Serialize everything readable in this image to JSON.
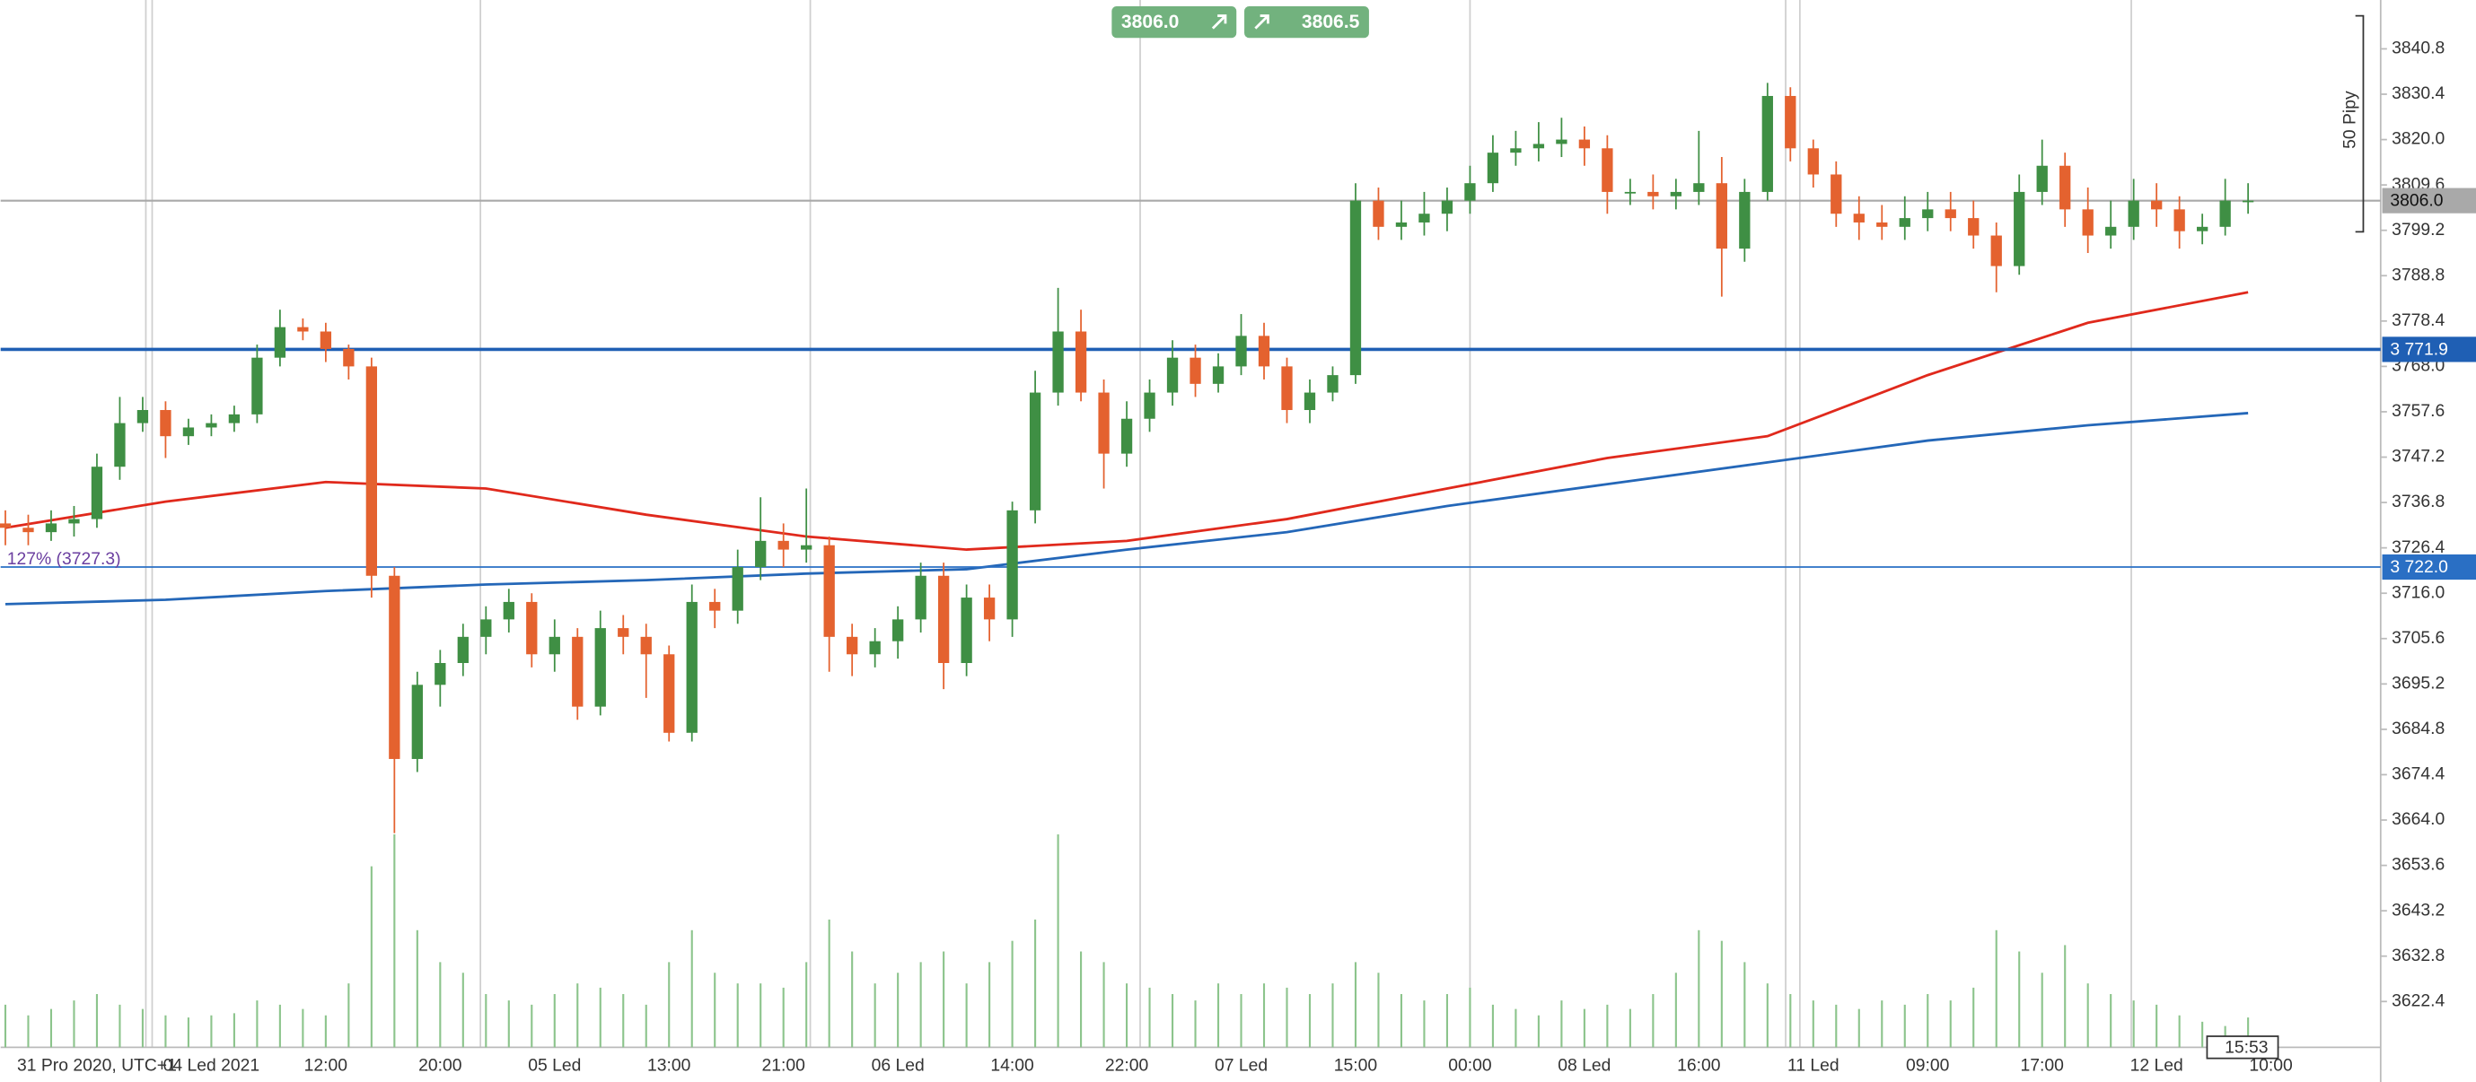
{
  "chart_data": {
    "type": "candlestick",
    "categories": [
      null,
      null,
      null,
      null,
      "31 Pro 2020, UTC+1",
      null,
      null,
      null,
      null,
      "04 Led 2021",
      null,
      null,
      null,
      null,
      "12:00",
      null,
      null,
      null,
      null,
      "20:00",
      null,
      null,
      null,
      null,
      "05 Led",
      null,
      null,
      null,
      null,
      "13:00",
      null,
      null,
      null,
      null,
      "21:00",
      null,
      null,
      null,
      null,
      "06 Led",
      null,
      null,
      null,
      null,
      "14:00",
      null,
      null,
      null,
      null,
      "22:00",
      null,
      null,
      null,
      null,
      "07 Led",
      null,
      null,
      null,
      null,
      "15:00",
      null,
      null,
      null,
      null,
      "00:00",
      null,
      null,
      null,
      null,
      "08 Led",
      null,
      null,
      null,
      null,
      "16:00",
      null,
      null,
      null,
      null,
      "11 Led",
      null,
      null,
      null,
      null,
      "09:00",
      null,
      null,
      null,
      null,
      "17:00",
      null,
      null,
      null,
      null,
      "12 Led",
      null,
      null,
      null,
      null,
      "10:00"
    ],
    "open": [
      3732,
      3731,
      3730,
      3732,
      3733,
      3745,
      3755,
      3758,
      3752,
      3754,
      3755,
      3757,
      3770,
      3777,
      3776,
      3772,
      3768,
      3720,
      3678,
      3695,
      3700,
      3706,
      3710,
      3714,
      3702,
      3706,
      3690,
      3708,
      3706,
      3702,
      3684,
      3714,
      3712,
      3722,
      3728,
      3726,
      3727,
      3706,
      3702,
      3705,
      3710,
      3720,
      3700,
      3715,
      3710,
      3735,
      3762,
      3776,
      3762,
      3748,
      3756,
      3762,
      3770,
      3764,
      3768,
      3775,
      3768,
      3758,
      3762,
      3766,
      3806,
      3800,
      3801,
      3803,
      3806,
      3810,
      3817,
      3818,
      3819,
      3820,
      3818,
      3808,
      3808,
      3807,
      3808,
      3810,
      3795,
      3808,
      3830,
      3818,
      3812,
      3803,
      3801,
      3800,
      3802,
      3804,
      3802,
      3798,
      3791,
      3808,
      3814,
      3804,
      3798,
      3800,
      3806,
      3804,
      3799,
      3800,
      3806,
      null
    ],
    "high": [
      3735,
      3734,
      3735,
      3736,
      3748,
      3761,
      3761,
      3760,
      3756,
      3757,
      3759,
      3773,
      3781,
      3779,
      3778,
      3773,
      3770,
      3722,
      3698,
      3703,
      3709,
      3713,
      3717,
      3716,
      3710,
      3708,
      3712,
      3711,
      3709,
      3704,
      3718,
      3717,
      3726,
      3738,
      3732,
      3740,
      3729,
      3709,
      3708,
      3713,
      3723,
      3723,
      3718,
      3718,
      3737,
      3767,
      3786,
      3781,
      3765,
      3760,
      3765,
      3774,
      3773,
      3771,
      3780,
      3778,
      3770,
      3765,
      3768,
      3810,
      3809,
      3806,
      3808,
      3809,
      3814,
      3821,
      3822,
      3824,
      3825,
      3823,
      3821,
      3811,
      3812,
      3811,
      3822,
      3816,
      3811,
      3833,
      3832,
      3820,
      3815,
      3807,
      3805,
      3807,
      3808,
      3808,
      3806,
      3801,
      3812,
      3820,
      3817,
      3809,
      3806,
      3811,
      3810,
      3807,
      3803,
      3811,
      3810,
      null
    ],
    "low": [
      3727,
      3727,
      3728,
      3729,
      3731,
      3742,
      3753,
      3747,
      3750,
      3752,
      3753,
      3755,
      3768,
      3774,
      3769,
      3765,
      3715,
      3661,
      3675,
      3690,
      3697,
      3702,
      3707,
      3699,
      3698,
      3687,
      3688,
      3702,
      3692,
      3682,
      3682,
      3708,
      3709,
      3719,
      3722,
      3723,
      3698,
      3697,
      3699,
      3701,
      3707,
      3694,
      3697,
      3705,
      3706,
      3732,
      3759,
      3760,
      3740,
      3745,
      3753,
      3759,
      3761,
      3762,
      3766,
      3765,
      3755,
      3755,
      3760,
      3764,
      3797,
      3797,
      3798,
      3799,
      3803,
      3808,
      3814,
      3815,
      3816,
      3814,
      3803,
      3805,
      3804,
      3804,
      3805,
      3784,
      3792,
      3806,
      3815,
      3809,
      3800,
      3797,
      3797,
      3797,
      3799,
      3799,
      3795,
      3785,
      3789,
      3805,
      3800,
      3794,
      3795,
      3797,
      3800,
      3795,
      3796,
      3798,
      3803,
      null
    ],
    "close": [
      3731,
      3730,
      3732,
      3733,
      3745,
      3755,
      3758,
      3752,
      3754,
      3755,
      3757,
      3770,
      3777,
      3776,
      3772,
      3768,
      3720,
      3678,
      3695,
      3700,
      3706,
      3710,
      3714,
      3702,
      3706,
      3690,
      3708,
      3706,
      3702,
      3684,
      3714,
      3712,
      3722,
      3728,
      3726,
      3727,
      3706,
      3702,
      3705,
      3710,
      3720,
      3700,
      3715,
      3710,
      3735,
      3762,
      3776,
      3762,
      3748,
      3756,
      3762,
      3770,
      3764,
      3768,
      3775,
      3768,
      3758,
      3762,
      3766,
      3806,
      3800,
      3801,
      3803,
      3806,
      3810,
      3817,
      3818,
      3819,
      3820,
      3818,
      3808,
      3808,
      3807,
      3808,
      3810,
      3795,
      3808,
      3830,
      3818,
      3812,
      3803,
      3801,
      3800,
      3802,
      3804,
      3802,
      3798,
      3791,
      3808,
      3814,
      3804,
      3798,
      3800,
      3806,
      3804,
      3799,
      3800,
      3806,
      3806,
      null
    ],
    "volume": [
      20,
      15,
      18,
      22,
      25,
      20,
      18,
      15,
      14,
      15,
      16,
      22,
      20,
      18,
      15,
      30,
      85,
      100,
      55,
      40,
      35,
      25,
      22,
      20,
      25,
      30,
      28,
      25,
      20,
      40,
      55,
      35,
      30,
      30,
      28,
      40,
      60,
      45,
      30,
      35,
      40,
      45,
      30,
      40,
      50,
      60,
      100,
      45,
      40,
      30,
      28,
      25,
      22,
      30,
      25,
      30,
      28,
      25,
      30,
      40,
      35,
      25,
      22,
      25,
      28,
      20,
      18,
      15,
      22,
      18,
      20,
      18,
      25,
      35,
      55,
      50,
      40,
      30,
      25,
      22,
      20,
      18,
      22,
      20,
      25,
      22,
      28,
      55,
      45,
      35,
      48,
      30,
      25,
      22,
      20,
      15,
      12,
      10,
      14,
      null
    ],
    "up_color": "#3f8f44",
    "down_color": "#e4622f",
    "volume_color": "#8cc48c",
    "ylim": [
      3611.9,
      3852.0
    ],
    "yticks": [
      3840.8,
      3830.4,
      {
        "value": 3820,
        "label": "3820.0"
      },
      3809.6,
      3799.2,
      3788.8,
      3778.4,
      {
        "value": 3768,
        "label": "3768.0"
      },
      3757.6,
      3747.2,
      3736.8,
      3726.4,
      {
        "value": 3716,
        "label": "3716.0"
      },
      3705.6,
      3695.2,
      3684.8,
      3674.4,
      {
        "value": 3664,
        "label": "3664.0"
      },
      3653.6,
      3643.2,
      3632.8,
      3622.4
    ],
    "grid": false,
    "moving_averages": [
      {
        "color": "#e0291c",
        "x": [
          0,
          7,
          14,
          21,
          28,
          35,
          42,
          49,
          56,
          63,
          70,
          77,
          84,
          91,
          98
        ],
        "values": [
          3731,
          3737,
          3741.5,
          3740,
          3734,
          3729,
          3726,
          3728,
          3733,
          3740,
          3747,
          3752,
          3766,
          3778,
          3785
        ]
      },
      {
        "color": "#2467b8",
        "x": [
          0,
          7,
          14,
          21,
          28,
          35,
          42,
          49,
          56,
          63,
          70,
          77,
          84,
          91,
          98
        ],
        "values": [
          3713.5,
          3714.5,
          3716.5,
          3718,
          3719,
          3720.5,
          3721.5,
          3726,
          3730,
          3736,
          3741,
          3746,
          3751,
          3754.5,
          3757.3
        ]
      }
    ],
    "levels": [
      {
        "value": 3771.9,
        "label": "3 771.9",
        "color": "#1f5fb4",
        "width": 2
      },
      {
        "value": 3722.0,
        "label": "3 722.0",
        "color": "#2a6fc4",
        "width": 1
      }
    ],
    "current_price": {
      "value": 3806.0,
      "label": "3806.0",
      "color": "#a9a9a9"
    },
    "annotation": "127% (3727.3)",
    "bid": "3806.0",
    "ask": "3806.5",
    "pip_range_label": "50 Pipy",
    "time_label": "15:53"
  }
}
